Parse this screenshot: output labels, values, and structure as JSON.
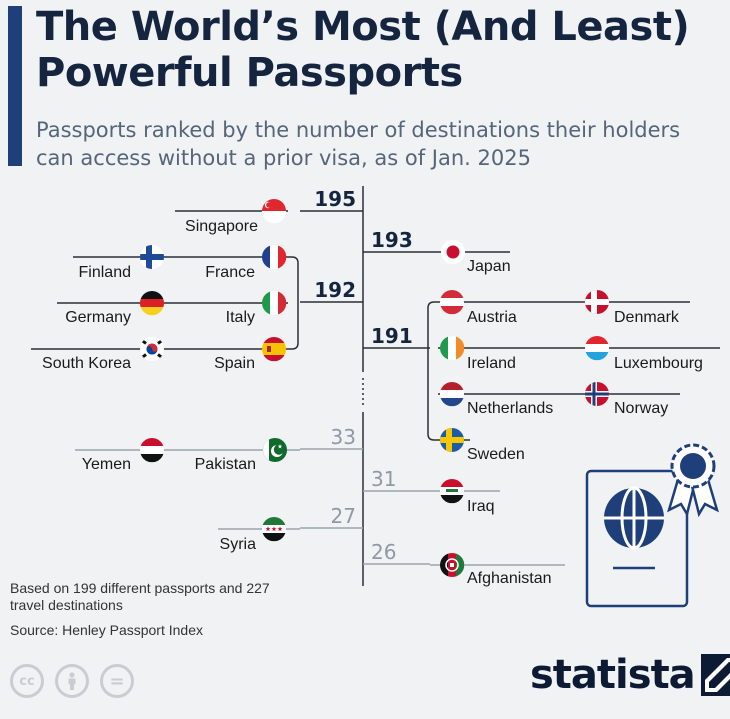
{
  "title": "The World’s Most (And Least) Powerful Passports",
  "subtitle": "Passports ranked by the number of destinations their holders can access without a prior visa, as of Jan. 2025",
  "footnote": "Based on 199 different passports and 227 travel destinations",
  "source": "Source: Henley Passport Index",
  "license_icons": [
    "cc",
    "person",
    "="
  ],
  "brand": "statista",
  "colors": {
    "accent": "#1f3f7a",
    "dark_text": "#15253f",
    "grey_value": "#8f99a5",
    "lines": "#2a2f36"
  },
  "chart_data": {
    "type": "ranking-tree",
    "unit": "destinations accessible without prior visa",
    "data": [
      {
        "country": "Singapore",
        "value": 195,
        "side": "left"
      },
      {
        "country": "Japan",
        "value": 193,
        "side": "right"
      },
      {
        "country": "France",
        "value": 192,
        "side": "left"
      },
      {
        "country": "Finland",
        "value": 192,
        "side": "left"
      },
      {
        "country": "Italy",
        "value": 192,
        "side": "left"
      },
      {
        "country": "Germany",
        "value": 192,
        "side": "left"
      },
      {
        "country": "Spain",
        "value": 192,
        "side": "left"
      },
      {
        "country": "South Korea",
        "value": 192,
        "side": "left"
      },
      {
        "country": "Austria",
        "value": 191,
        "side": "right"
      },
      {
        "country": "Denmark",
        "value": 191,
        "side": "right"
      },
      {
        "country": "Ireland",
        "value": 191,
        "side": "right"
      },
      {
        "country": "Luxembourg",
        "value": 191,
        "side": "right"
      },
      {
        "country": "Netherlands",
        "value": 191,
        "side": "right"
      },
      {
        "country": "Norway",
        "value": 191,
        "side": "right"
      },
      {
        "country": "Sweden",
        "value": 191,
        "side": "right"
      },
      {
        "country": "Pakistan",
        "value": 33,
        "side": "left"
      },
      {
        "country": "Yemen",
        "value": 33,
        "side": "left"
      },
      {
        "country": "Iraq",
        "value": 31,
        "side": "right"
      },
      {
        "country": "Syria",
        "value": 27,
        "side": "left"
      },
      {
        "country": "Afghanistan",
        "value": 26,
        "side": "right"
      }
    ]
  }
}
